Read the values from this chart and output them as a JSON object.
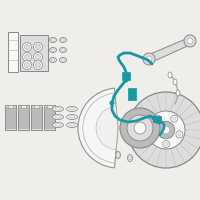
{
  "bg_color": "#f0eeeb",
  "highlight_color": "#1899a0",
  "line_color": "#aaaaaa",
  "dark_line": "#888888",
  "fill_light": "#dddddd",
  "fill_mid": "#bbbbbb",
  "fill_white": "#f8f8f8",
  "figsize": [
    2.0,
    2.0
  ],
  "dpi": 100
}
